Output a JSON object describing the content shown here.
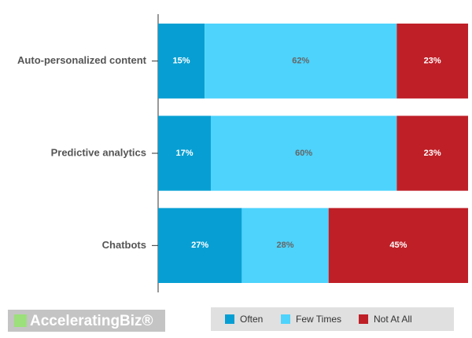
{
  "chart_data": {
    "type": "stacked-bar-horizontal",
    "categories": [
      "Auto-personalized content",
      "Predictive analytics",
      "Chatbots"
    ],
    "series": [
      {
        "name": "Often",
        "color": "#079fd3",
        "values": [
          15,
          17,
          27
        ],
        "value_labels": [
          "15%",
          "17%",
          "27%"
        ]
      },
      {
        "name": "Few Times",
        "color": "#4dd3fc",
        "values": [
          62,
          60,
          28
        ],
        "value_labels": [
          "62%",
          "60%",
          "28%"
        ]
      },
      {
        "name": "Not At All",
        "color": "#bf1f27",
        "values": [
          23,
          23,
          45
        ],
        "value_labels": [
          "23%",
          "23%",
          "45%"
        ]
      }
    ],
    "legend": "bottom",
    "logo": "AcceleratingBiz®"
  }
}
